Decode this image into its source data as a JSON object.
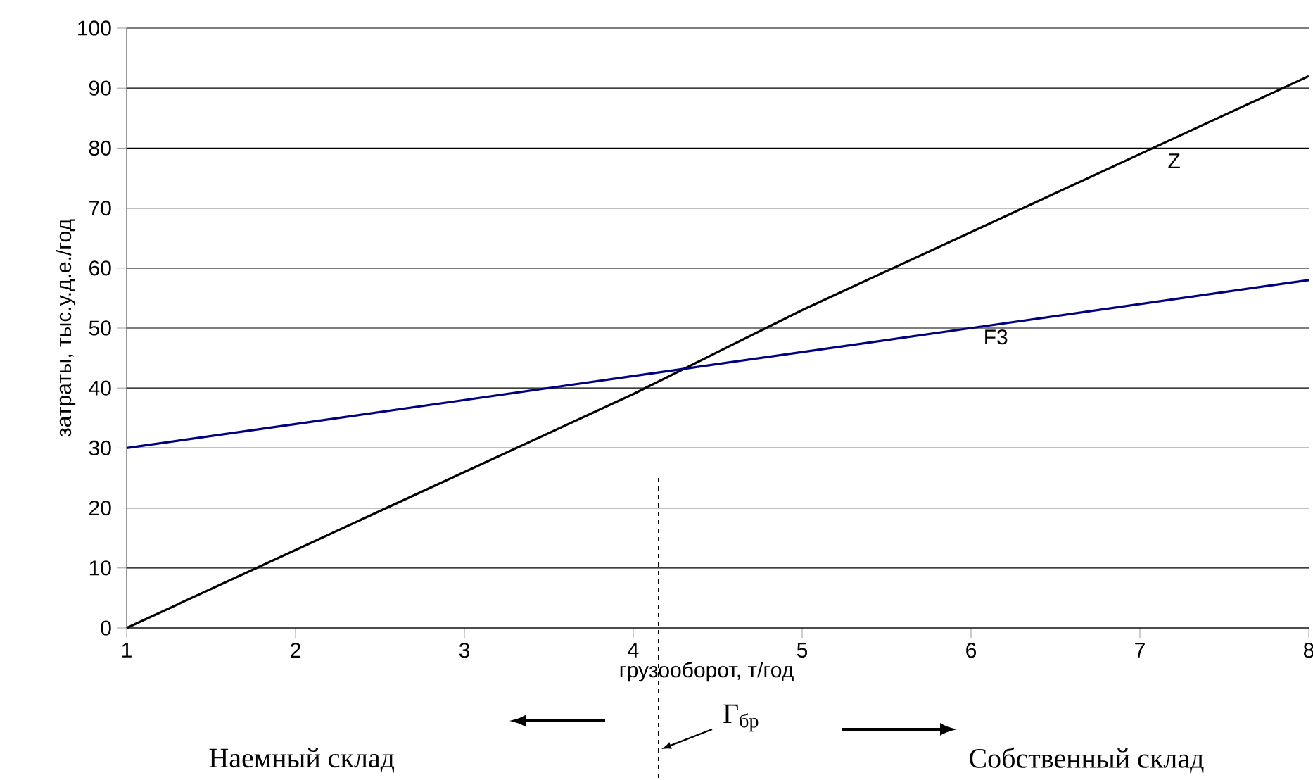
{
  "chart_data": {
    "type": "line",
    "xlabel": "грузооборот, т/год",
    "ylabel": "затраты, тыс.у.д.е./год",
    "x": [
      1,
      2,
      3,
      4,
      5,
      6,
      7,
      8
    ],
    "series": [
      {
        "name": "Z",
        "color": "#000000",
        "values": [
          0,
          13,
          26,
          39,
          53,
          66,
          79,
          92
        ]
      },
      {
        "name": "F3",
        "color": "#000080",
        "values": [
          30,
          34,
          38,
          42,
          46,
          50,
          54,
          58
        ]
      }
    ],
    "xlim": [
      1,
      8
    ],
    "ylim": [
      0,
      100
    ],
    "xticks": [
      1,
      2,
      3,
      4,
      5,
      6,
      7,
      8
    ],
    "yticks": [
      0,
      10,
      20,
      30,
      40,
      50,
      60,
      70,
      80,
      90,
      100
    ],
    "grid": "y",
    "legend": false,
    "marker": "none",
    "line_style": "solid",
    "ref_lines": [
      {
        "axis": "x",
        "value": 4.15,
        "label": "Г$_{бр}$",
        "line_style": "dashed"
      }
    ],
    "annotations": [
      "Наемный склад",
      "Собственный склад"
    ]
  }
}
